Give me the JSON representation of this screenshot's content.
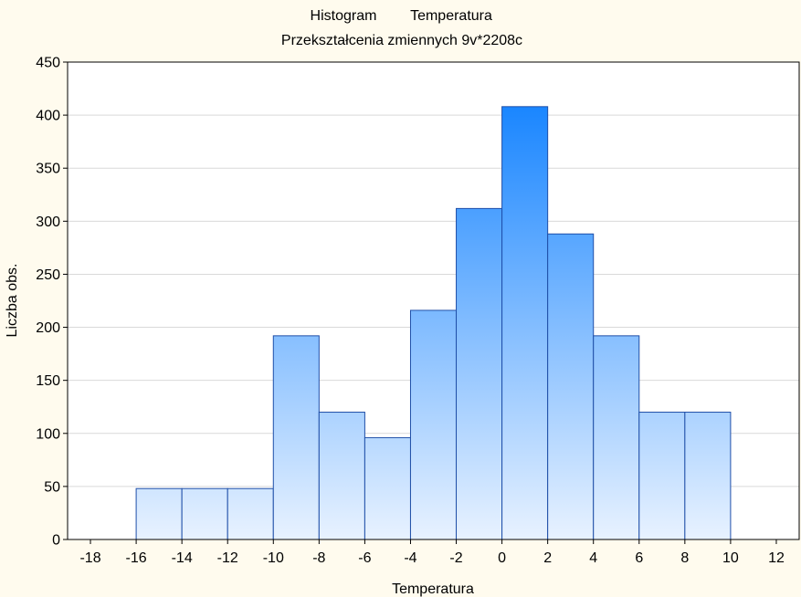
{
  "chart_data": {
    "type": "bar",
    "title": "Histogram",
    "title_variable": "Temperatura",
    "subtitle": "Przekształcenia zmiennych 9v*2208c",
    "xlabel": "Temperatura",
    "ylabel": "Liczba obs.",
    "xlim": [
      -19,
      13
    ],
    "ylim": [
      0,
      450
    ],
    "x_ticks": [
      -18,
      -16,
      -14,
      -12,
      -10,
      -8,
      -6,
      -4,
      -2,
      0,
      2,
      4,
      6,
      8,
      10,
      12
    ],
    "y_ticks": [
      0,
      50,
      100,
      150,
      200,
      250,
      300,
      350,
      400,
      450
    ],
    "grid": true,
    "bins": [
      {
        "from": -16,
        "to": -14,
        "value": 48
      },
      {
        "from": -14,
        "to": -12,
        "value": 48
      },
      {
        "from": -12,
        "to": -10,
        "value": 48
      },
      {
        "from": -10,
        "to": -8,
        "value": 192
      },
      {
        "from": -8,
        "to": -6,
        "value": 120
      },
      {
        "from": -6,
        "to": -4,
        "value": 96
      },
      {
        "from": -4,
        "to": -2,
        "value": 216
      },
      {
        "from": -2,
        "to": 0,
        "value": 312
      },
      {
        "from": 0,
        "to": 2,
        "value": 408
      },
      {
        "from": 2,
        "to": 4,
        "value": 288
      },
      {
        "from": 4,
        "to": 6,
        "value": 192
      },
      {
        "from": 6,
        "to": 8,
        "value": 120
      },
      {
        "from": 8,
        "to": 10,
        "value": 120
      }
    ],
    "colors": {
      "bar_top": "#1a86ff",
      "bar_bottom": "#e8f2ff",
      "bar_stroke": "#1f4fa8",
      "grid": "#d9d9d9",
      "plot_bg": "#ffffff",
      "page_bg": "#fffbee"
    }
  }
}
